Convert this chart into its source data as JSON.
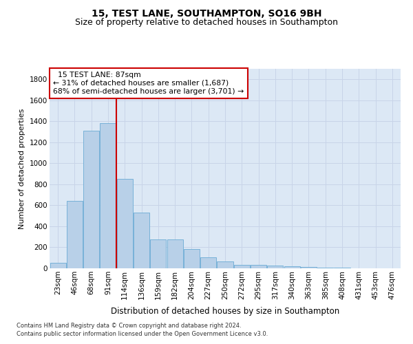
{
  "title1": "15, TEST LANE, SOUTHAMPTON, SO16 9BH",
  "title2": "Size of property relative to detached houses in Southampton",
  "xlabel": "Distribution of detached houses by size in Southampton",
  "ylabel": "Number of detached properties",
  "footer1": "Contains HM Land Registry data © Crown copyright and database right 2024.",
  "footer2": "Contains public sector information licensed under the Open Government Licence v3.0.",
  "annotation_line1": "  15 TEST LANE: 87sqm",
  "annotation_line2": "← 31% of detached houses are smaller (1,687)",
  "annotation_line3": "68% of semi-detached houses are larger (3,701) →",
  "bar_values": [
    50,
    640,
    1310,
    1380,
    850,
    530,
    275,
    275,
    185,
    105,
    65,
    35,
    35,
    25,
    20,
    15,
    5,
    5,
    0,
    0,
    0
  ],
  "categories": [
    "23sqm",
    "46sqm",
    "68sqm",
    "91sqm",
    "114sqm",
    "136sqm",
    "159sqm",
    "182sqm",
    "204sqm",
    "227sqm",
    "250sqm",
    "272sqm",
    "295sqm",
    "317sqm",
    "340sqm",
    "363sqm",
    "385sqm",
    "408sqm",
    "431sqm",
    "453sqm",
    "476sqm"
  ],
  "bar_color": "#b8d0e8",
  "bar_edge_color": "#6aaad4",
  "grid_color": "#c8d4e8",
  "bg_color": "#dce8f5",
  "vline_color": "#cc0000",
  "ylim": [
    0,
    1900
  ],
  "yticks": [
    0,
    200,
    400,
    600,
    800,
    1000,
    1200,
    1400,
    1600,
    1800
  ],
  "vline_idx": 3,
  "title1_fontsize": 10,
  "title2_fontsize": 9,
  "ylabel_fontsize": 8,
  "xlabel_fontsize": 8.5,
  "tick_fontsize": 7.5,
  "footer_fontsize": 6
}
